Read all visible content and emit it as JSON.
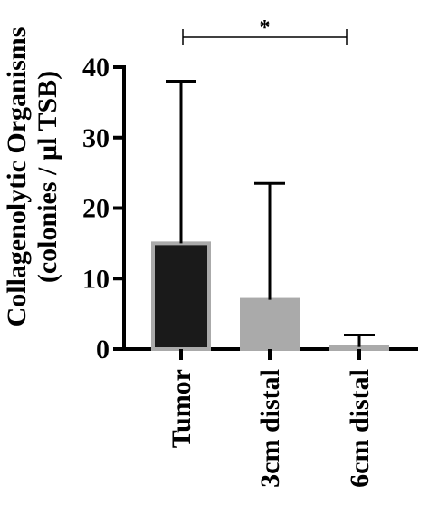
{
  "chart_data": {
    "type": "bar",
    "title": "",
    "xlabel": "",
    "ylabel": "Collagenolytic Organisms",
    "ylabel_units": "(colonies / µl TSB)",
    "categories": [
      "Tumor",
      "3cm distal",
      "6cm distal"
    ],
    "values": [
      15,
      7,
      0.3
    ],
    "error_upper": [
      38,
      23.5,
      2
    ],
    "ylim": [
      0,
      40
    ],
    "yticks": [
      0,
      10,
      20,
      30,
      40
    ],
    "bar_colors": [
      "#1a1a1a",
      "#aaaaaa",
      "#aaaaaa"
    ],
    "bar_outline_color": "#aaaaaa",
    "grid": false,
    "significance": {
      "between": [
        "Tumor",
        "6cm distal"
      ],
      "label": "*"
    }
  }
}
